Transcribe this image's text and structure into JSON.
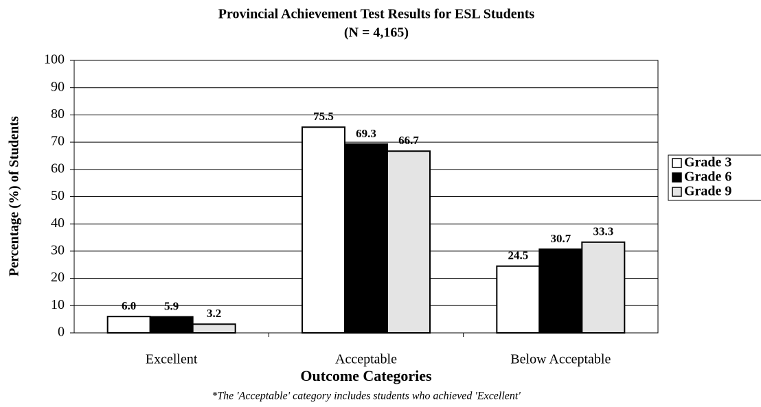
{
  "chart_data": {
    "type": "bar",
    "title": "Provincial Achievement Test Results for ESL Students",
    "subtitle": "(N = 4,165)",
    "x_label": "Outcome Categories",
    "y_label": "Percentage (%) of Students",
    "annotation": "*The 'Acceptable' category includes students who achieved 'Excellent'",
    "categories": [
      "Excellent",
      "Acceptable",
      "Below Acceptable"
    ],
    "series": [
      {
        "name": "Grade 3",
        "color": "#ffffff",
        "values": [
          6.0,
          75.5,
          24.5
        ],
        "value_labels": [
          "6.0",
          "75.5",
          "24.5"
        ]
      },
      {
        "name": "Grade 6",
        "color": "#000000",
        "values": [
          5.9,
          69.3,
          30.7
        ],
        "value_labels": [
          "5.9",
          "69.3",
          "30.7"
        ]
      },
      {
        "name": "Grade 9",
        "color": "#e4e4e4",
        "values": [
          3.2,
          66.7,
          33.3
        ],
        "value_labels": [
          "3.2",
          "66.7",
          "33.3"
        ]
      }
    ],
    "ylim": [
      0,
      100
    ],
    "yticks": [
      0,
      10,
      20,
      30,
      40,
      50,
      60,
      70,
      80,
      90,
      100
    ],
    "grid": true,
    "legend": "right"
  }
}
